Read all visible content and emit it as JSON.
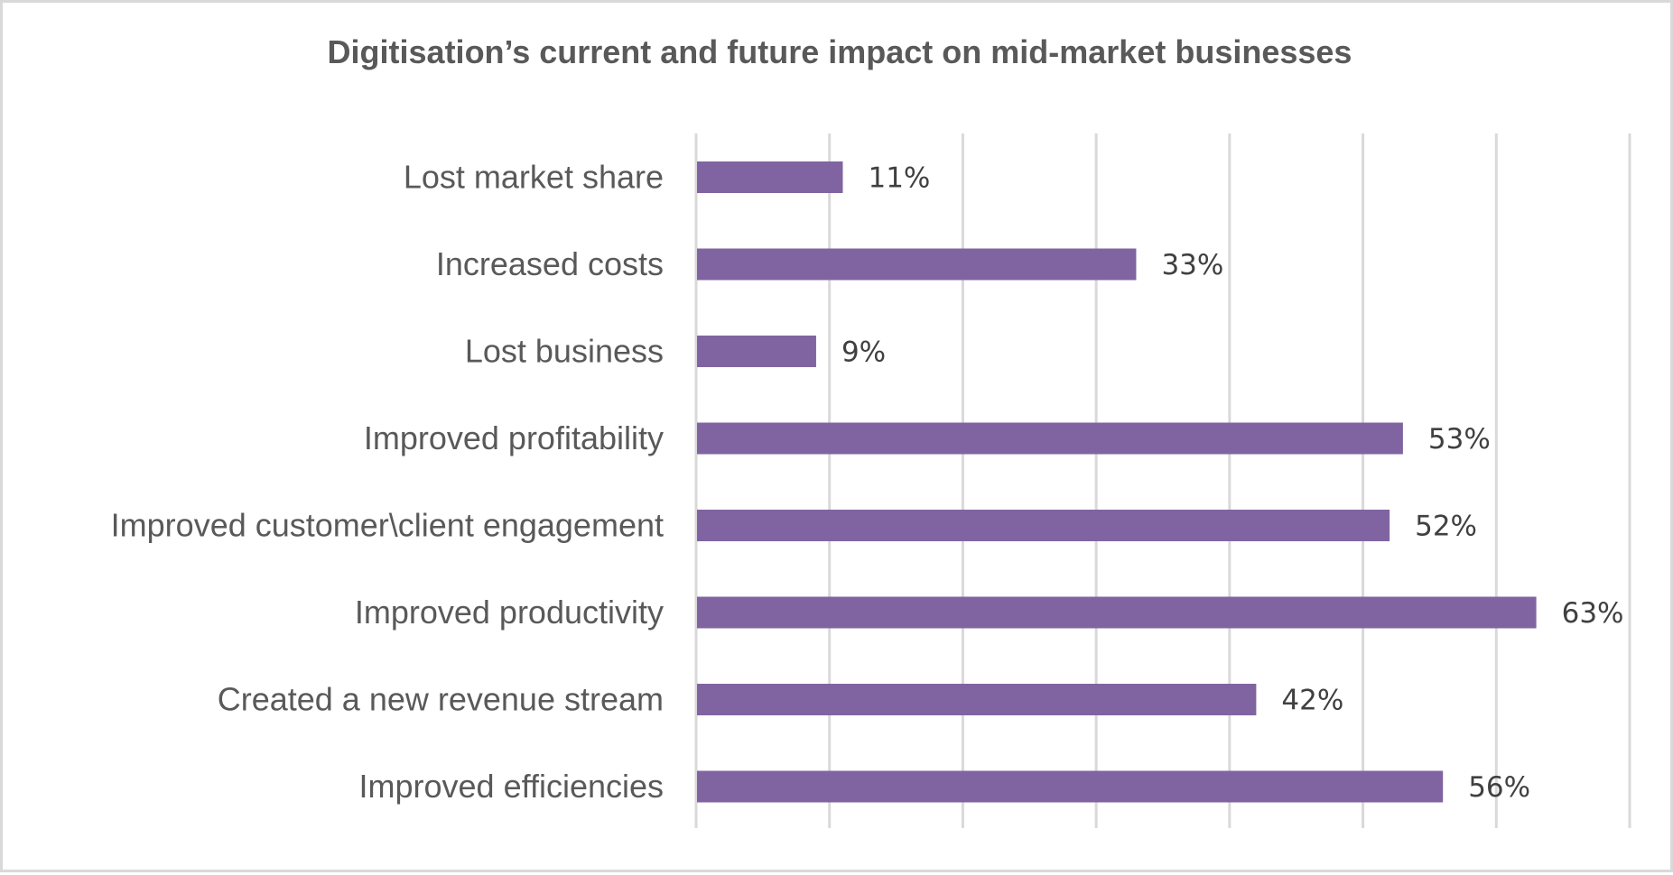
{
  "chart_data": {
    "type": "bar",
    "orientation": "horizontal",
    "title": "Digitisation’s current and future impact on mid-market businesses",
    "categories": [
      "Lost market share",
      "Increased costs",
      "Lost business",
      "Improved profitability",
      "Improved customer\\client engagement",
      "Improved productivity",
      "Created a new revenue stream",
      "Improved efficiencies"
    ],
    "values": [
      11,
      33,
      9,
      53,
      52,
      63,
      42,
      56
    ],
    "value_labels": [
      "11%",
      "33%",
      "9%",
      "53%",
      "52%",
      "63%",
      "42%",
      "56%"
    ],
    "xlabel": "",
    "ylabel": "",
    "xlim": [
      0,
      70
    ],
    "gridline_step": 10,
    "grid": true,
    "x_tick_labels_visible": false,
    "legend": "none",
    "bar_color": "#8064a2",
    "unit": "%"
  }
}
